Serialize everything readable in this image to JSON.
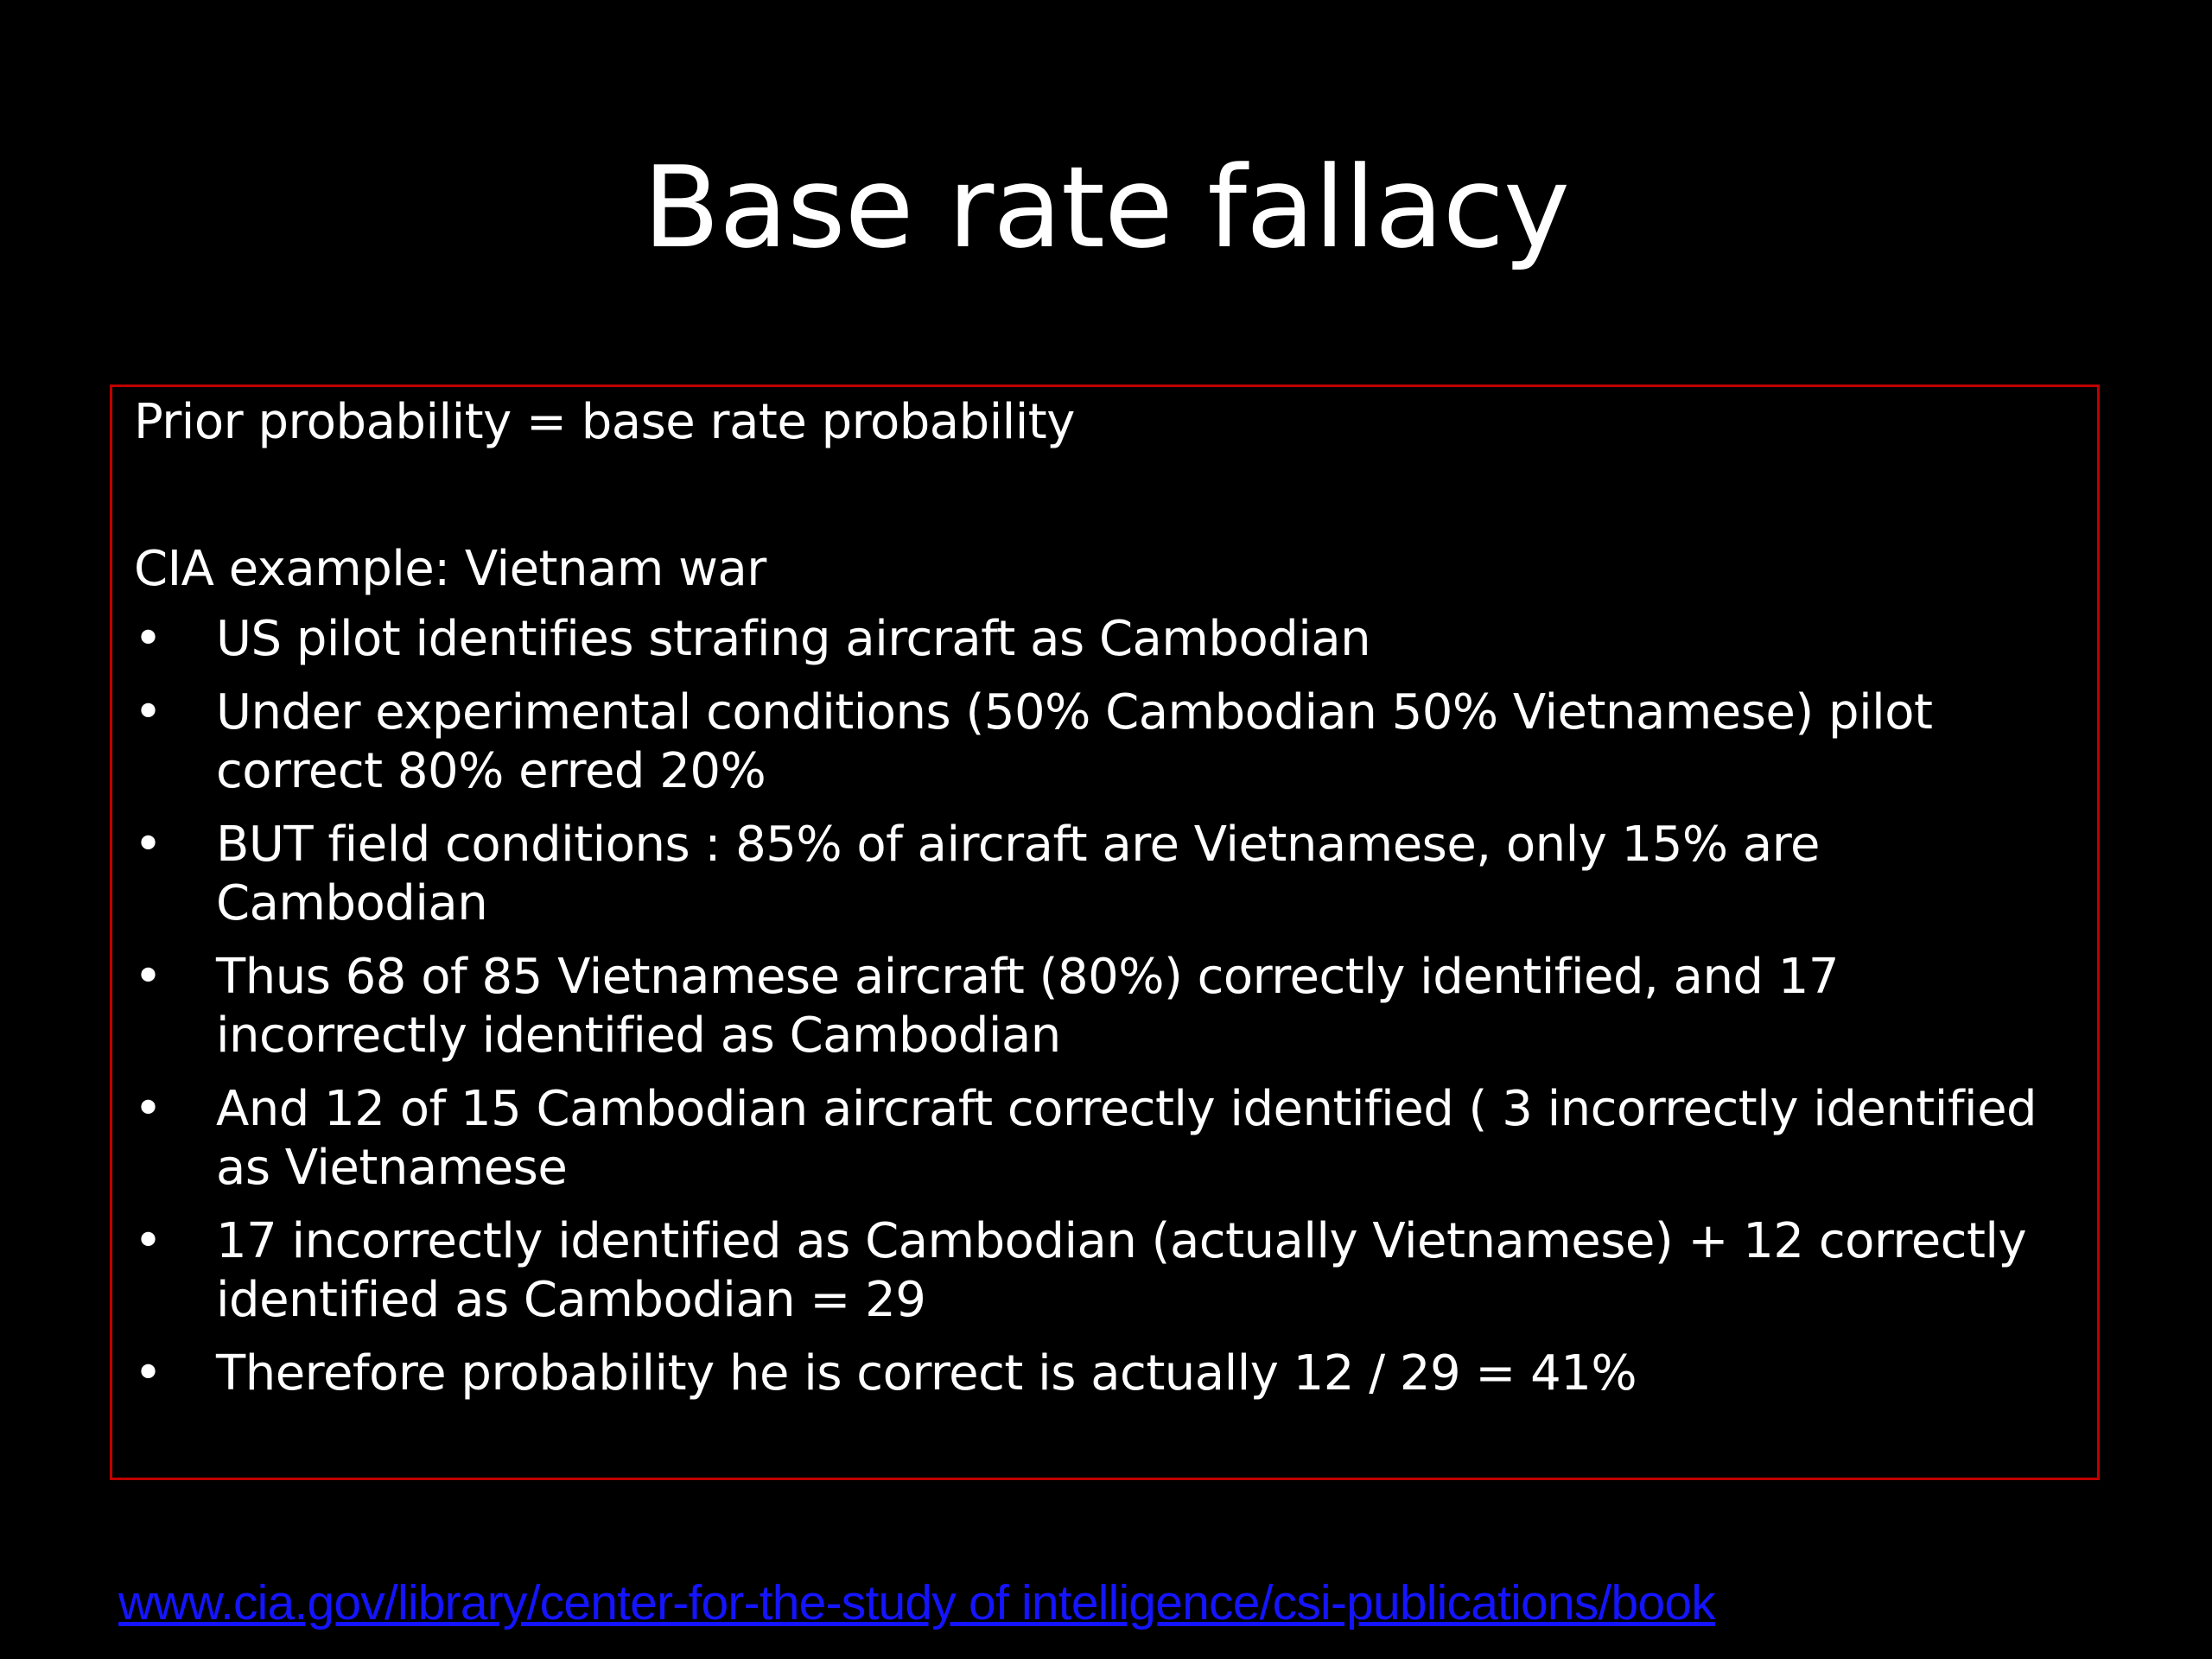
{
  "slide": {
    "title": "Base rate fallacy",
    "box": {
      "prior": "Prior probability = base rate probability",
      "example": "CIA example: Vietnam war",
      "bullet_symbol": "•",
      "bullets": [
        "US pilot identifies strafing aircraft as Cambodian",
        "Under experimental conditions (50% Cambodian 50% Vietnamese) pilot correct 80% erred 20%",
        "BUT field conditions : 85% of aircraft are Vietnamese, only 15% are Cambodian",
        "Thus 68 of 85 Vietnamese aircraft (80%) correctly identified, and 17 incorrectly identified as Cambodian",
        "And 12 of 15 Cambodian aircraft correctly identified ( 3 incorrectly identified as Vietnamese",
        "17 incorrectly identified as Cambodian (actually Vietnamese) + 12 correctly identified as Cambodian = 29",
        "Therefore probability he is correct is actually 12 / 29 = 41%"
      ],
      "border_color": "#c00000"
    },
    "link": "www.cia.gov/library/center-for-the-study of intelligence/csi-publications/book",
    "colors": {
      "background": "#000000",
      "text": "#ffffff",
      "link": "#1414ff"
    }
  }
}
